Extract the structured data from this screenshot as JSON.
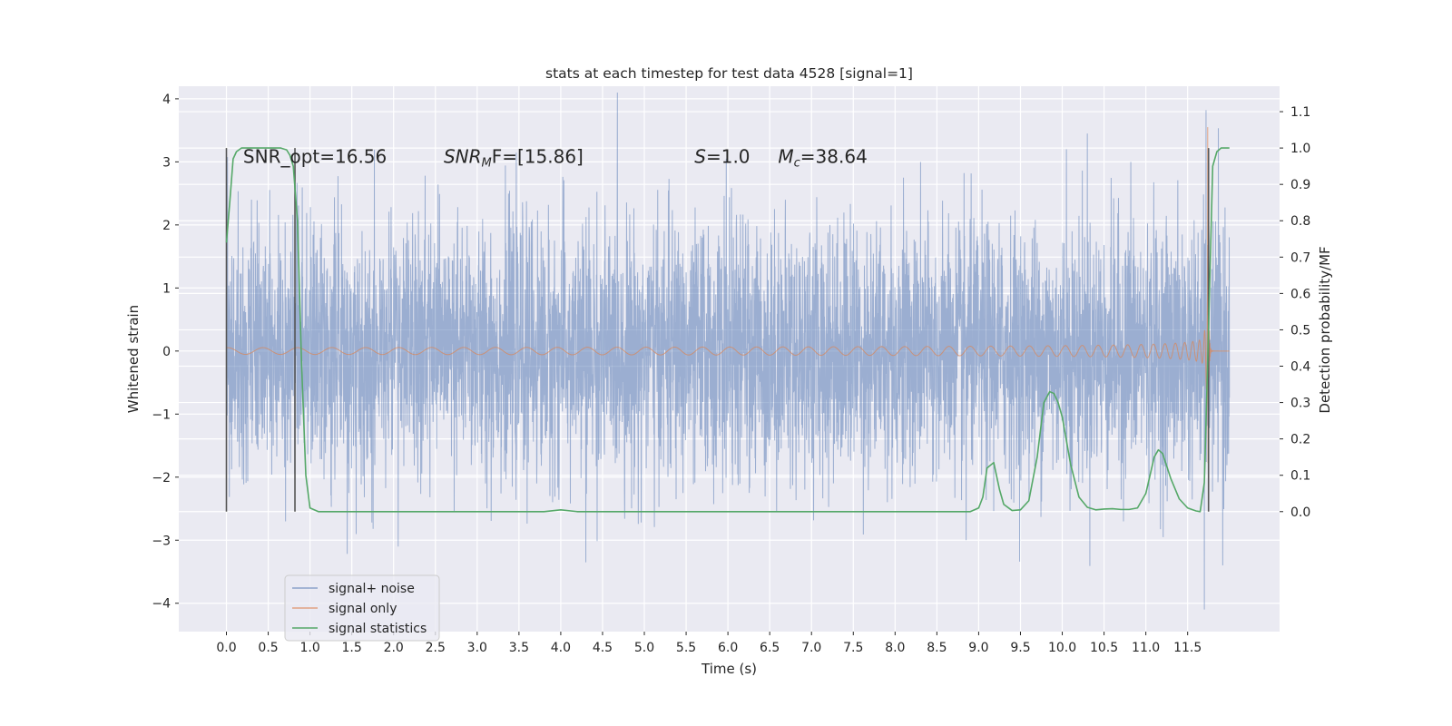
{
  "chart_data": {
    "type": "line",
    "title": "stats at each timestep for test data 4528 [signal=1]",
    "xlabel": "Time (s)",
    "ylabel": "Whitened strain",
    "y2label": "Detection probability/MF",
    "xlim": [
      -0.57,
      12.6
    ],
    "ylim": [
      -4.45,
      4.2
    ],
    "y2lim": [
      -0.33,
      1.17
    ],
    "x_ticks": [
      0.0,
      0.5,
      1.0,
      1.5,
      2.0,
      2.5,
      3.0,
      3.5,
      4.0,
      4.5,
      5.0,
      5.5,
      6.0,
      6.5,
      7.0,
      7.5,
      8.0,
      8.5,
      9.0,
      9.5,
      10.0,
      10.5,
      11.0,
      11.5
    ],
    "x_tick_labels": [
      "0.0",
      "0.5",
      "1.0",
      "1.5",
      "2.0",
      "2.5",
      "3.0",
      "3.5",
      "4.0",
      "4.5",
      "5.0",
      "5.5",
      "6.0",
      "6.5",
      "7.0",
      "7.5",
      "8.0",
      "8.5",
      "9.0",
      "9.5",
      "10.0",
      "10.5",
      "11.0",
      "11.5"
    ],
    "y_ticks": [
      -4,
      -3,
      -2,
      -1,
      0,
      1,
      2,
      3,
      4
    ],
    "y_tick_labels": [
      "−4",
      "−3",
      "−2",
      "−1",
      "0",
      "1",
      "2",
      "3",
      "4"
    ],
    "y2_ticks": [
      0.0,
      0.1,
      0.2,
      0.3,
      0.4,
      0.5,
      0.6,
      0.7,
      0.8,
      0.9,
      1.0,
      1.1
    ],
    "y2_tick_labels": [
      "0.0",
      "0.1",
      "0.2",
      "0.3",
      "0.4",
      "0.5",
      "0.6",
      "0.7",
      "0.8",
      "0.9",
      "1.0",
      "1.1"
    ],
    "grid": true,
    "legend_position": "lower-left",
    "series": [
      {
        "name": "signal+ noise",
        "color": "#4c72b0",
        "style": "noise",
        "x_range": [
          0.0,
          12.0
        ],
        "typical_amplitude": 1.6,
        "peaks": [
          {
            "x": 0.3,
            "y": 2.4
          },
          {
            "x": 4.3,
            "y": -3.35
          },
          {
            "x": 5.98,
            "y": 3.05
          },
          {
            "x": 8.1,
            "y": 2.75
          },
          {
            "x": 8.85,
            "y": -3.0
          },
          {
            "x": 10.05,
            "y": 3.2
          },
          {
            "x": 10.3,
            "y": 3.45
          },
          {
            "x": 10.82,
            "y": 3.0
          },
          {
            "x": 11.72,
            "y": 3.82
          },
          {
            "x": 11.7,
            "y": -4.1
          },
          {
            "x": 11.92,
            "y": -3.4
          }
        ]
      },
      {
        "name": "signal only",
        "color": "#dd8452",
        "style": "chirp",
        "x_range": [
          0.0,
          12.0
        ],
        "merger_time": 11.74,
        "peak_amplitude": 3.55
      },
      {
        "name": "signal statistics",
        "color": "#55a868",
        "axis": "right",
        "x": [
          0.0,
          0.04,
          0.08,
          0.12,
          0.18,
          0.3,
          0.5,
          0.65,
          0.72,
          0.76,
          0.8,
          0.85,
          0.9,
          0.95,
          1.0,
          1.1,
          1.5,
          2.0,
          3.0,
          3.8,
          4.0,
          4.2,
          5.0,
          6.0,
          7.0,
          8.0,
          8.9,
          9.0,
          9.05,
          9.1,
          9.18,
          9.25,
          9.3,
          9.4,
          9.5,
          9.6,
          9.7,
          9.78,
          9.85,
          9.9,
          9.95,
          10.0,
          10.1,
          10.2,
          10.3,
          10.4,
          10.5,
          10.6,
          10.7,
          10.8,
          10.9,
          11.0,
          11.1,
          11.15,
          11.2,
          11.3,
          11.4,
          11.5,
          11.6,
          11.65,
          11.7,
          11.75,
          11.8,
          11.85,
          11.9,
          11.95,
          12.0
        ],
        "y": [
          0.74,
          0.85,
          0.97,
          0.99,
          1.0,
          1.0,
          1.0,
          1.0,
          0.995,
          0.98,
          0.95,
          0.8,
          0.4,
          0.1,
          0.01,
          0.0,
          0.0,
          0.0,
          0.0,
          0.0,
          0.005,
          0.0,
          0.0,
          0.0,
          0.0,
          0.0,
          0.0,
          0.01,
          0.04,
          0.12,
          0.135,
          0.06,
          0.02,
          0.003,
          0.005,
          0.03,
          0.15,
          0.3,
          0.33,
          0.325,
          0.3,
          0.26,
          0.13,
          0.04,
          0.012,
          0.005,
          0.007,
          0.008,
          0.006,
          0.006,
          0.01,
          0.05,
          0.15,
          0.17,
          0.16,
          0.09,
          0.035,
          0.01,
          0.002,
          0.0,
          0.08,
          0.5,
          0.95,
          0.99,
          1.0,
          1.0,
          1.0
        ]
      }
    ],
    "vertical_markers": [
      0.0,
      0.82,
      11.75
    ],
    "annotations": [
      {
        "text": "SNR_opt=16.56",
        "x": 0.2,
        "y": 3.0
      },
      {
        "text_main": "SNR",
        "text_sub": "M",
        "text_rest": "F=[15.86]",
        "x": 2.6,
        "y": 3.0
      },
      {
        "text_main": "S",
        "text_rest": "=1.0",
        "x": 5.6,
        "y": 3.0
      },
      {
        "text_main": "M",
        "text_sub": "c",
        "text_rest": "=38.64",
        "x": 6.6,
        "y": 3.0
      }
    ]
  }
}
